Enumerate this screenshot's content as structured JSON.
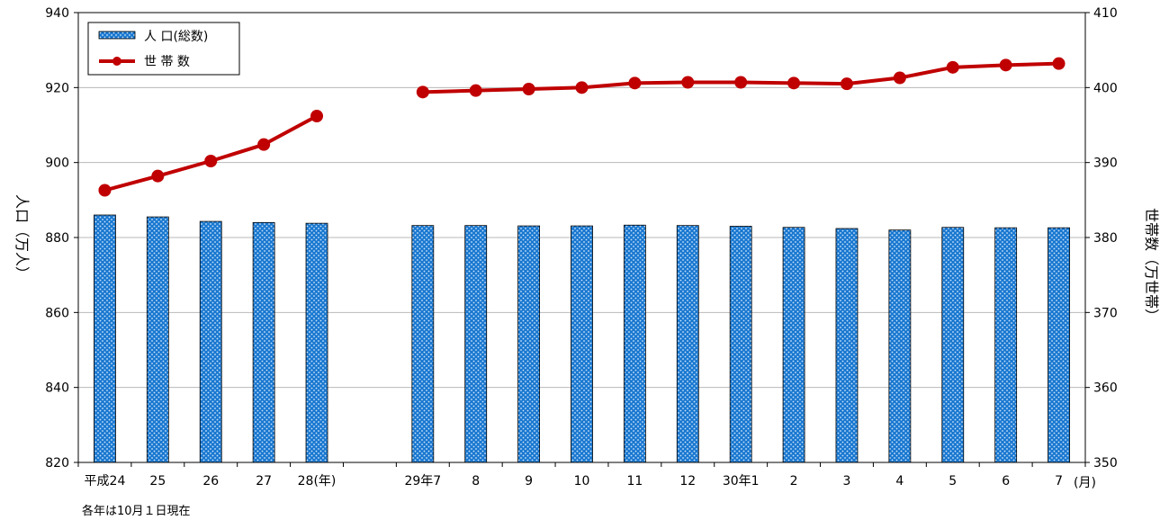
{
  "chart_data": {
    "type": "bar",
    "categories": [
      "平成24",
      "25",
      "26",
      "27",
      "28(年)",
      "",
      "29年7",
      "8",
      "9",
      "10",
      "11",
      "12",
      "30年1",
      "2",
      "3",
      "4",
      "5",
      "6",
      "7"
    ],
    "series": [
      {
        "name": "人 口(総数)",
        "type": "bar",
        "axis": "left",
        "color": "#1f7fd4",
        "values": [
          886.0,
          885.5,
          884.3,
          884.0,
          883.8,
          null,
          883.2,
          883.2,
          883.1,
          883.1,
          883.3,
          883.2,
          883.0,
          882.7,
          882.4,
          882.0,
          882.7,
          882.6,
          882.6
        ]
      },
      {
        "name": "世 帯 数",
        "type": "line",
        "axis": "right",
        "color": "#c00000",
        "values": [
          386.3,
          388.2,
          390.2,
          392.4,
          396.2,
          null,
          399.4,
          399.6,
          399.8,
          400.0,
          400.6,
          400.7,
          400.7,
          400.6,
          400.5,
          401.3,
          402.7,
          403.0,
          403.2
        ]
      }
    ],
    "y_left": {
      "label": "人口（万人）",
      "ylim": [
        820,
        940
      ],
      "ticks": [
        "820",
        "840",
        "860",
        "880",
        "900",
        "920",
        "940"
      ]
    },
    "y_right": {
      "label": "世帯数（万世帯）",
      "ylim": [
        350,
        410
      ],
      "ticks": [
        "350",
        "360",
        "370",
        "380",
        "390",
        "400",
        "410"
      ]
    },
    "x_unit": "(月)",
    "note": "各年は10月１日現在",
    "grid": true,
    "legend_position": "top-left"
  }
}
